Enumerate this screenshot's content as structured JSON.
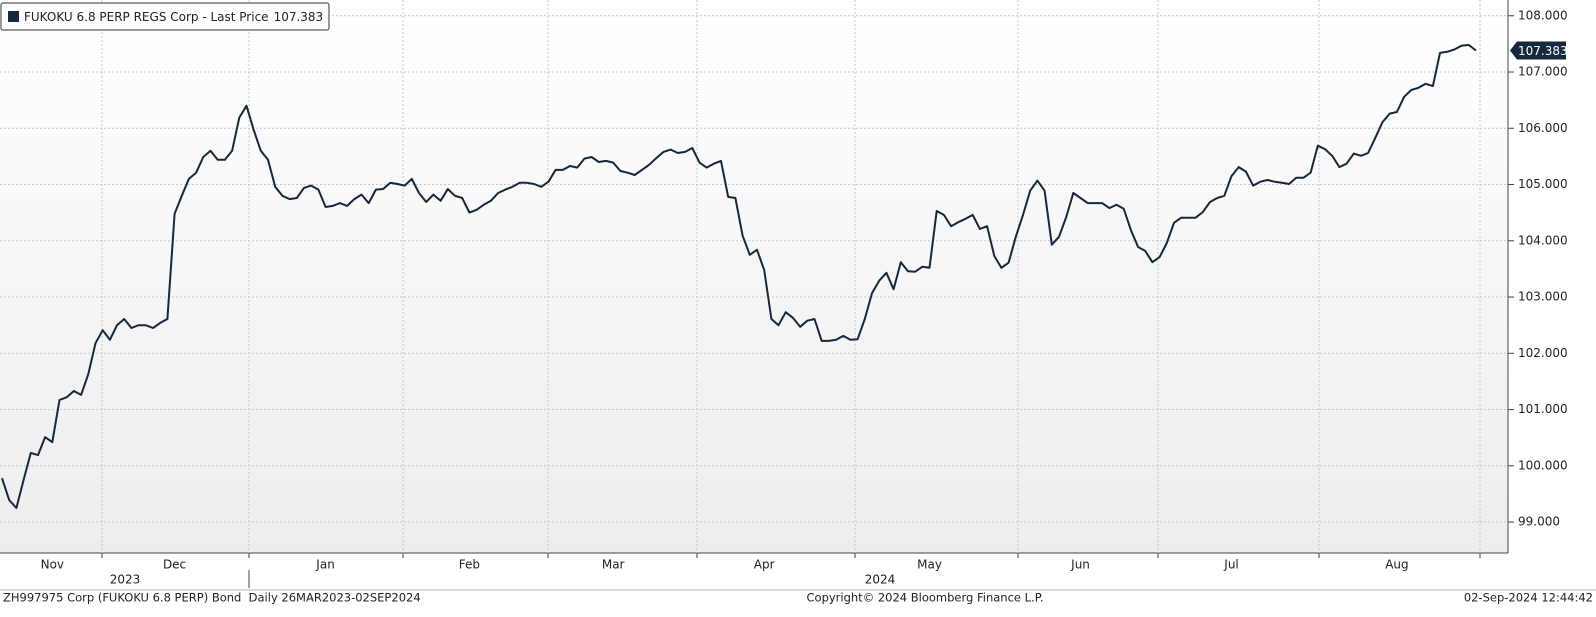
{
  "chart_data": {
    "type": "line",
    "series": [
      {
        "name": "FUKOKU 6.8 PERP REGS Corp - Last Price",
        "color": "#15283c",
        "values": [
          99.78,
          99.39,
          99.25,
          99.75,
          100.23,
          100.19,
          100.51,
          100.42,
          101.17,
          101.22,
          101.33,
          101.26,
          101.63,
          102.18,
          102.41,
          102.24,
          102.5,
          102.61,
          102.45,
          102.5,
          102.5,
          102.45,
          102.54,
          102.61,
          104.48,
          104.8,
          105.1,
          105.21,
          105.49,
          105.6,
          105.44,
          105.44,
          105.6,
          106.19,
          106.4,
          105.97,
          105.6,
          105.44,
          104.96,
          104.8,
          104.74,
          104.76,
          104.94,
          104.98,
          104.91,
          104.6,
          104.62,
          104.67,
          104.62,
          104.74,
          104.82,
          104.67,
          104.91,
          104.92,
          105.03,
          105.01,
          104.98,
          105.1,
          104.85,
          104.69,
          104.82,
          104.71,
          104.92,
          104.8,
          104.76,
          104.5,
          104.55,
          104.64,
          104.71,
          104.85,
          104.91,
          104.96,
          105.03,
          105.03,
          105.01,
          104.96,
          105.05,
          105.26,
          105.26,
          105.33,
          105.3,
          105.46,
          105.49,
          105.4,
          105.42,
          105.39,
          105.24,
          105.21,
          105.17,
          105.26,
          105.35,
          105.47,
          105.58,
          105.62,
          105.56,
          105.58,
          105.65,
          105.39,
          105.3,
          105.37,
          105.42,
          104.78,
          104.76,
          104.09,
          103.75,
          103.84,
          103.48,
          102.61,
          102.5,
          102.73,
          102.63,
          102.47,
          102.58,
          102.61,
          102.22,
          102.22,
          102.24,
          102.31,
          102.24,
          102.25,
          102.61,
          103.07,
          103.29,
          103.43,
          103.14,
          103.62,
          103.46,
          103.45,
          103.54,
          103.52,
          104.53,
          104.46,
          104.26,
          104.33,
          104.39,
          104.46,
          104.21,
          104.26,
          103.73,
          103.52,
          103.61,
          104.07,
          104.46,
          104.89,
          105.07,
          104.89,
          103.93,
          104.07,
          104.42,
          104.85,
          104.76,
          104.67,
          104.67,
          104.67,
          104.58,
          104.64,
          104.57,
          104.19,
          103.89,
          103.82,
          103.62,
          103.71,
          103.96,
          104.32,
          104.41,
          104.41,
          104.41,
          104.51,
          104.69,
          104.76,
          104.8,
          105.15,
          105.31,
          105.23,
          104.98,
          105.05,
          105.08,
          105.05,
          105.03,
          105.01,
          105.12,
          105.12,
          105.21,
          105.69,
          105.63,
          105.51,
          105.31,
          105.37,
          105.55,
          105.51,
          105.56,
          105.83,
          106.11,
          106.26,
          106.29,
          106.56,
          106.68,
          106.72,
          106.79,
          106.75,
          107.34,
          107.36,
          107.4,
          107.47,
          107.48,
          107.383
        ]
      }
    ],
    "categories": [
      null,
      null,
      null,
      null,
      null,
      null,
      null,
      "Nov",
      null,
      null,
      null,
      null,
      null,
      null,
      null,
      null,
      null,
      null,
      null,
      null,
      null,
      null,
      null,
      null,
      "Dec",
      null,
      null,
      null,
      null,
      null,
      null,
      null,
      null,
      null,
      null,
      null,
      null,
      null,
      null,
      null,
      null,
      null,
      null,
      null,
      null,
      "Jan",
      null,
      null,
      null,
      null,
      null,
      null,
      null,
      null,
      null,
      null,
      null,
      null,
      null,
      null,
      null,
      null,
      null,
      null,
      null,
      "Feb",
      null,
      null,
      null,
      null,
      null,
      null,
      null,
      null,
      null,
      null,
      null,
      null,
      null,
      null,
      null,
      null,
      null,
      null,
      null,
      "Mar",
      null,
      null,
      null,
      null,
      null,
      null,
      null,
      null,
      null,
      null,
      null,
      null,
      null,
      null,
      null,
      null,
      null,
      null,
      null,
      null,
      "Apr",
      null,
      null,
      null,
      null,
      null,
      null,
      null,
      null,
      null,
      null,
      null,
      null,
      null,
      null,
      null,
      null,
      null,
      null,
      null,
      null,
      null,
      null,
      "May",
      null,
      null,
      null,
      null,
      null,
      null,
      null,
      null,
      null,
      null,
      null,
      null,
      null,
      null,
      null,
      null,
      null,
      null,
      null,
      null,
      "Jun",
      null,
      null,
      null,
      null,
      null,
      null,
      null,
      null,
      null,
      null,
      null,
      null,
      null,
      null,
      null,
      null,
      null,
      null,
      null,
      null,
      "Jul",
      null,
      null,
      null,
      null,
      null,
      null,
      null,
      null,
      null,
      null,
      null,
      null,
      null,
      null,
      null,
      null,
      null,
      null,
      null,
      null,
      null,
      null,
      "Aug",
      null,
      null,
      null,
      null,
      null,
      null,
      null,
      null,
      null,
      null,
      null
    ],
    "year_labels": [
      "2023",
      "2024"
    ],
    "ylim": [
      98.45,
      108.28
    ],
    "yticks": [
      {
        "value": 99,
        "label": "99.000"
      },
      {
        "value": 100,
        "label": "100.000"
      },
      {
        "value": 101,
        "label": "101.000"
      },
      {
        "value": 102,
        "label": "102.000"
      },
      {
        "value": 103,
        "label": "103.000"
      },
      {
        "value": 104,
        "label": "104.000"
      },
      {
        "value": 105,
        "label": "105.000"
      },
      {
        "value": 106,
        "label": "106.000"
      },
      {
        "value": 107,
        "label": "107.000"
      },
      {
        "value": 108,
        "label": "108.000"
      }
    ],
    "grid": true,
    "legend": "top-left",
    "footer": {
      "left": "ZH997975 Corp (FUKOKU 6.8 PERP) Bond  Daily 26MAR2023-02SEP2024",
      "center": "Copyright© 2024 Bloomberg Finance L.P.",
      "right": "02-Sep-2024 12:44:42"
    }
  }
}
